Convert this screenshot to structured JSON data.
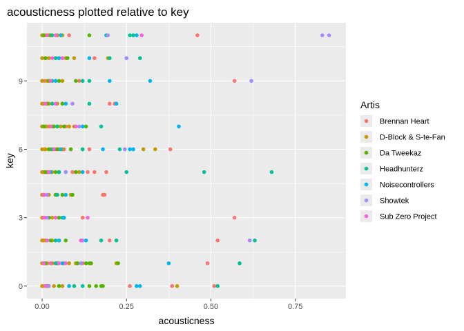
{
  "chart_data": {
    "type": "scatter",
    "title": "acousticness plotted relative to key",
    "xlabel": "acousticness",
    "ylabel": "key",
    "xlim": [
      -0.045,
      0.9
    ],
    "ylim": [
      -0.55,
      11.55
    ],
    "xticks": [
      0.0,
      0.25,
      0.5,
      0.75
    ],
    "xtick_labels": [
      "0.00",
      "0.25",
      "0.50",
      "0.75"
    ],
    "yticks": [
      0,
      3,
      6,
      9
    ],
    "ytick_labels": [
      "0",
      "3",
      "6",
      "9"
    ],
    "x_minor_gridlines": [
      0.125,
      0.375,
      0.625
    ],
    "y_minor_gridlines": [
      1.5,
      4.5,
      7.5,
      10.5
    ],
    "grid": true,
    "background": "#ebebeb",
    "legend": {
      "title": "Artis",
      "position": "right",
      "entries": [
        {
          "label": "Brennan Heart",
          "color": "#F8766D"
        },
        {
          "label": "D-Block & S-te-Fan",
          "color": "#C49A00"
        },
        {
          "label": "Da Tweekaz",
          "color": "#53B400"
        },
        {
          "label": "Headhunterz",
          "color": "#00C094"
        },
        {
          "label": "Noisecontrollers",
          "color": "#00B6EB"
        },
        {
          "label": "Showtek",
          "color": "#A58AFF"
        },
        {
          "label": "Sub Zero Project",
          "color": "#FB61D7"
        }
      ]
    },
    "series": [
      {
        "name": "Brennan Heart",
        "color": "#F8766D",
        "points": [
          {
            "x": 0.003,
            "y": 11
          },
          {
            "x": 0.08,
            "y": 11
          },
          {
            "x": 0.46,
            "y": 11
          },
          {
            "x": 0.01,
            "y": 10
          },
          {
            "x": 0.155,
            "y": 10
          },
          {
            "x": 0.008,
            "y": 9
          },
          {
            "x": 0.11,
            "y": 9
          },
          {
            "x": 0.57,
            "y": 9
          },
          {
            "x": 0.005,
            "y": 8
          },
          {
            "x": 0.2,
            "y": 8
          },
          {
            "x": 0.215,
            "y": 8
          },
          {
            "x": 0.012,
            "y": 7
          },
          {
            "x": 0.07,
            "y": 7
          },
          {
            "x": 0.007,
            "y": 6
          },
          {
            "x": 0.065,
            "y": 6
          },
          {
            "x": 0.14,
            "y": 6
          },
          {
            "x": 0.38,
            "y": 6
          },
          {
            "x": 0.004,
            "y": 5
          },
          {
            "x": 0.09,
            "y": 5
          },
          {
            "x": 0.135,
            "y": 5
          },
          {
            "x": 0.155,
            "y": 5
          },
          {
            "x": 0.19,
            "y": 5
          },
          {
            "x": 0.006,
            "y": 4
          },
          {
            "x": 0.18,
            "y": 4
          },
          {
            "x": 0.185,
            "y": 4
          },
          {
            "x": 0.009,
            "y": 3
          },
          {
            "x": 0.12,
            "y": 3
          },
          {
            "x": 0.57,
            "y": 3
          },
          {
            "x": 0.004,
            "y": 2
          },
          {
            "x": 0.2,
            "y": 2
          },
          {
            "x": 0.52,
            "y": 2
          },
          {
            "x": 0.006,
            "y": 1
          },
          {
            "x": 0.12,
            "y": 1
          },
          {
            "x": 0.49,
            "y": 1
          },
          {
            "x": 0.003,
            "y": 0
          },
          {
            "x": 0.26,
            "y": 0
          },
          {
            "x": 0.385,
            "y": 0
          },
          {
            "x": 0.51,
            "y": 0
          }
        ]
      },
      {
        "name": "D-Block & S-te-Fan",
        "color": "#C49A00",
        "points": [
          {
            "x": 0.0,
            "y": 11
          },
          {
            "x": 0.01,
            "y": 11
          },
          {
            "x": 0.02,
            "y": 11
          },
          {
            "x": 0.045,
            "y": 11
          },
          {
            "x": 0.06,
            "y": 11
          },
          {
            "x": 0.0,
            "y": 10
          },
          {
            "x": 0.02,
            "y": 10
          },
          {
            "x": 0.05,
            "y": 10
          },
          {
            "x": 0.07,
            "y": 10
          },
          {
            "x": 0.095,
            "y": 10
          },
          {
            "x": 0.195,
            "y": 10
          },
          {
            "x": 0.0,
            "y": 9
          },
          {
            "x": 0.015,
            "y": 9
          },
          {
            "x": 0.04,
            "y": 9
          },
          {
            "x": 0.06,
            "y": 9
          },
          {
            "x": 0.0,
            "y": 8
          },
          {
            "x": 0.02,
            "y": 8
          },
          {
            "x": 0.045,
            "y": 8
          },
          {
            "x": 0.0,
            "y": 7
          },
          {
            "x": 0.01,
            "y": 7
          },
          {
            "x": 0.02,
            "y": 7
          },
          {
            "x": 0.03,
            "y": 7
          },
          {
            "x": 0.045,
            "y": 7
          },
          {
            "x": 0.055,
            "y": 7
          },
          {
            "x": 0.08,
            "y": 7
          },
          {
            "x": 0.095,
            "y": 7
          },
          {
            "x": 0.0,
            "y": 6
          },
          {
            "x": 0.01,
            "y": 6
          },
          {
            "x": 0.025,
            "y": 6
          },
          {
            "x": 0.04,
            "y": 6
          },
          {
            "x": 0.05,
            "y": 6
          },
          {
            "x": 0.06,
            "y": 6
          },
          {
            "x": 0.3,
            "y": 6
          },
          {
            "x": 0.335,
            "y": 6
          },
          {
            "x": 0.0,
            "y": 5
          },
          {
            "x": 0.015,
            "y": 5
          },
          {
            "x": 0.03,
            "y": 5
          },
          {
            "x": 0.05,
            "y": 5
          },
          {
            "x": 0.11,
            "y": 5
          },
          {
            "x": 0.0,
            "y": 4
          },
          {
            "x": 0.02,
            "y": 4
          },
          {
            "x": 0.04,
            "y": 4
          },
          {
            "x": 0.085,
            "y": 4
          },
          {
            "x": 0.0,
            "y": 3
          },
          {
            "x": 0.03,
            "y": 3
          },
          {
            "x": 0.0,
            "y": 2
          },
          {
            "x": 0.01,
            "y": 2
          },
          {
            "x": 0.03,
            "y": 2
          },
          {
            "x": 0.05,
            "y": 2
          },
          {
            "x": 0.0,
            "y": 1
          },
          {
            "x": 0.015,
            "y": 1
          },
          {
            "x": 0.03,
            "y": 1
          },
          {
            "x": 0.065,
            "y": 1
          },
          {
            "x": 0.08,
            "y": 1
          },
          {
            "x": 0.1,
            "y": 1
          },
          {
            "x": 0.22,
            "y": 1
          },
          {
            "x": 0.0,
            "y": 0
          },
          {
            "x": 0.01,
            "y": 0
          },
          {
            "x": 0.02,
            "y": 0
          },
          {
            "x": 0.035,
            "y": 0
          },
          {
            "x": 0.05,
            "y": 0
          },
          {
            "x": 0.06,
            "y": 0
          },
          {
            "x": 0.4,
            "y": 0
          }
        ]
      },
      {
        "name": "Da Tweekaz",
        "color": "#53B400",
        "points": [
          {
            "x": 0.005,
            "y": 11
          },
          {
            "x": 0.025,
            "y": 11
          },
          {
            "x": 0.14,
            "y": 11
          },
          {
            "x": 0.01,
            "y": 10
          },
          {
            "x": 0.04,
            "y": 10
          },
          {
            "x": 0.075,
            "y": 10
          },
          {
            "x": 0.02,
            "y": 9
          },
          {
            "x": 0.05,
            "y": 9
          },
          {
            "x": 0.1,
            "y": 9
          },
          {
            "x": 0.015,
            "y": 8
          },
          {
            "x": 0.06,
            "y": 8
          },
          {
            "x": 0.005,
            "y": 7
          },
          {
            "x": 0.035,
            "y": 7
          },
          {
            "x": 0.065,
            "y": 7
          },
          {
            "x": 0.13,
            "y": 7
          },
          {
            "x": 0.02,
            "y": 6
          },
          {
            "x": 0.045,
            "y": 6
          },
          {
            "x": 0.085,
            "y": 6
          },
          {
            "x": 0.01,
            "y": 5
          },
          {
            "x": 0.04,
            "y": 5
          },
          {
            "x": 0.07,
            "y": 5
          },
          {
            "x": 0.1,
            "y": 5
          },
          {
            "x": 0.04,
            "y": 4
          },
          {
            "x": 0.06,
            "y": 4
          },
          {
            "x": 0.09,
            "y": 4
          },
          {
            "x": 0.02,
            "y": 3
          },
          {
            "x": 0.05,
            "y": 3
          },
          {
            "x": 0.025,
            "y": 2
          },
          {
            "x": 0.07,
            "y": 2
          },
          {
            "x": 0.01,
            "y": 1
          },
          {
            "x": 0.045,
            "y": 1
          },
          {
            "x": 0.105,
            "y": 1
          },
          {
            "x": 0.13,
            "y": 1
          },
          {
            "x": 0.14,
            "y": 1
          },
          {
            "x": 0.145,
            "y": 1
          },
          {
            "x": 0.225,
            "y": 1
          },
          {
            "x": 0.015,
            "y": 0
          },
          {
            "x": 0.05,
            "y": 0
          },
          {
            "x": 0.14,
            "y": 0
          },
          {
            "x": 0.16,
            "y": 0
          },
          {
            "x": 0.175,
            "y": 0
          },
          {
            "x": 0.18,
            "y": 0
          }
        ]
      },
      {
        "name": "Headhunterz",
        "color": "#00C094",
        "points": [
          {
            "x": 0.03,
            "y": 11
          },
          {
            "x": 0.19,
            "y": 11
          },
          {
            "x": 0.26,
            "y": 11
          },
          {
            "x": 0.27,
            "y": 11
          },
          {
            "x": 0.04,
            "y": 10
          },
          {
            "x": 0.2,
            "y": 10
          },
          {
            "x": 0.29,
            "y": 10
          },
          {
            "x": 0.03,
            "y": 9
          },
          {
            "x": 0.12,
            "y": 9
          },
          {
            "x": 0.14,
            "y": 9
          },
          {
            "x": 0.03,
            "y": 8
          },
          {
            "x": 0.14,
            "y": 8
          },
          {
            "x": 0.045,
            "y": 7
          },
          {
            "x": 0.175,
            "y": 7
          },
          {
            "x": 0.03,
            "y": 6
          },
          {
            "x": 0.12,
            "y": 6
          },
          {
            "x": 0.23,
            "y": 6
          },
          {
            "x": 0.05,
            "y": 5
          },
          {
            "x": 0.25,
            "y": 5
          },
          {
            "x": 0.48,
            "y": 5
          },
          {
            "x": 0.68,
            "y": 5
          },
          {
            "x": 0.045,
            "y": 4
          },
          {
            "x": 0.06,
            "y": 3
          },
          {
            "x": 0.04,
            "y": 2
          },
          {
            "x": 0.175,
            "y": 2
          },
          {
            "x": 0.22,
            "y": 2
          },
          {
            "x": 0.63,
            "y": 2
          },
          {
            "x": 0.04,
            "y": 1
          },
          {
            "x": 0.585,
            "y": 1
          },
          {
            "x": 0.095,
            "y": 0
          },
          {
            "x": 0.12,
            "y": 0
          },
          {
            "x": 0.52,
            "y": 0
          }
        ]
      },
      {
        "name": "Noisecontrollers",
        "color": "#00B6EB",
        "points": [
          {
            "x": 0.055,
            "y": 11
          },
          {
            "x": 0.28,
            "y": 11
          },
          {
            "x": 0.05,
            "y": 10
          },
          {
            "x": 0.14,
            "y": 10
          },
          {
            "x": 0.04,
            "y": 9
          },
          {
            "x": 0.2,
            "y": 9
          },
          {
            "x": 0.32,
            "y": 9
          },
          {
            "x": 0.07,
            "y": 8
          },
          {
            "x": 0.22,
            "y": 8
          },
          {
            "x": 0.12,
            "y": 7
          },
          {
            "x": 0.405,
            "y": 7
          },
          {
            "x": 0.055,
            "y": 6
          },
          {
            "x": 0.18,
            "y": 6
          },
          {
            "x": 0.26,
            "y": 6
          },
          {
            "x": 0.27,
            "y": 6
          },
          {
            "x": 0.025,
            "y": 5
          },
          {
            "x": 0.12,
            "y": 5
          },
          {
            "x": 0.07,
            "y": 4
          },
          {
            "x": 0.065,
            "y": 3
          },
          {
            "x": 0.05,
            "y": 2
          },
          {
            "x": 0.13,
            "y": 2
          },
          {
            "x": 0.06,
            "y": 1
          },
          {
            "x": 0.375,
            "y": 1
          },
          {
            "x": 0.08,
            "y": 0
          },
          {
            "x": 0.28,
            "y": 0
          },
          {
            "x": 0.29,
            "y": 0
          }
        ]
      },
      {
        "name": "Showtek",
        "color": "#A58AFF",
        "points": [
          {
            "x": 0.83,
            "y": 11
          },
          {
            "x": 0.85,
            "y": 11
          },
          {
            "x": 0.195,
            "y": 11
          },
          {
            "x": 0.25,
            "y": 10
          },
          {
            "x": 0.62,
            "y": 9
          },
          {
            "x": 0.09,
            "y": 8
          },
          {
            "x": 0.11,
            "y": 7
          },
          {
            "x": 0.245,
            "y": 6
          },
          {
            "x": 0.07,
            "y": 5
          },
          {
            "x": 0.015,
            "y": 4
          },
          {
            "x": 0.015,
            "y": 3
          },
          {
            "x": 0.615,
            "y": 2
          },
          {
            "x": 0.12,
            "y": 2
          },
          {
            "x": 0.115,
            "y": 1
          },
          {
            "x": 0.02,
            "y": 0
          }
        ]
      },
      {
        "name": "Sub Zero Project",
        "color": "#FB61D7",
        "points": [
          {
            "x": 0.015,
            "y": 11
          },
          {
            "x": 0.04,
            "y": 11
          },
          {
            "x": 0.295,
            "y": 11
          },
          {
            "x": 0.03,
            "y": 10
          },
          {
            "x": 0.06,
            "y": 10
          },
          {
            "x": 0.025,
            "y": 9
          },
          {
            "x": 0.01,
            "y": 8
          },
          {
            "x": 0.04,
            "y": 8
          },
          {
            "x": 0.025,
            "y": 7
          },
          {
            "x": 0.1,
            "y": 7
          },
          {
            "x": 0.035,
            "y": 6
          },
          {
            "x": 0.02,
            "y": 5
          },
          {
            "x": 0.005,
            "y": 4
          },
          {
            "x": 0.005,
            "y": 3
          },
          {
            "x": 0.04,
            "y": 3
          },
          {
            "x": 0.135,
            "y": 3
          },
          {
            "x": 0.015,
            "y": 2
          },
          {
            "x": 0.115,
            "y": 2
          },
          {
            "x": 0.005,
            "y": 1
          },
          {
            "x": 0.025,
            "y": 1
          },
          {
            "x": 0.05,
            "y": 1
          },
          {
            "x": 0.07,
            "y": 1
          },
          {
            "x": 0.01,
            "y": 0
          }
        ]
      }
    ]
  }
}
